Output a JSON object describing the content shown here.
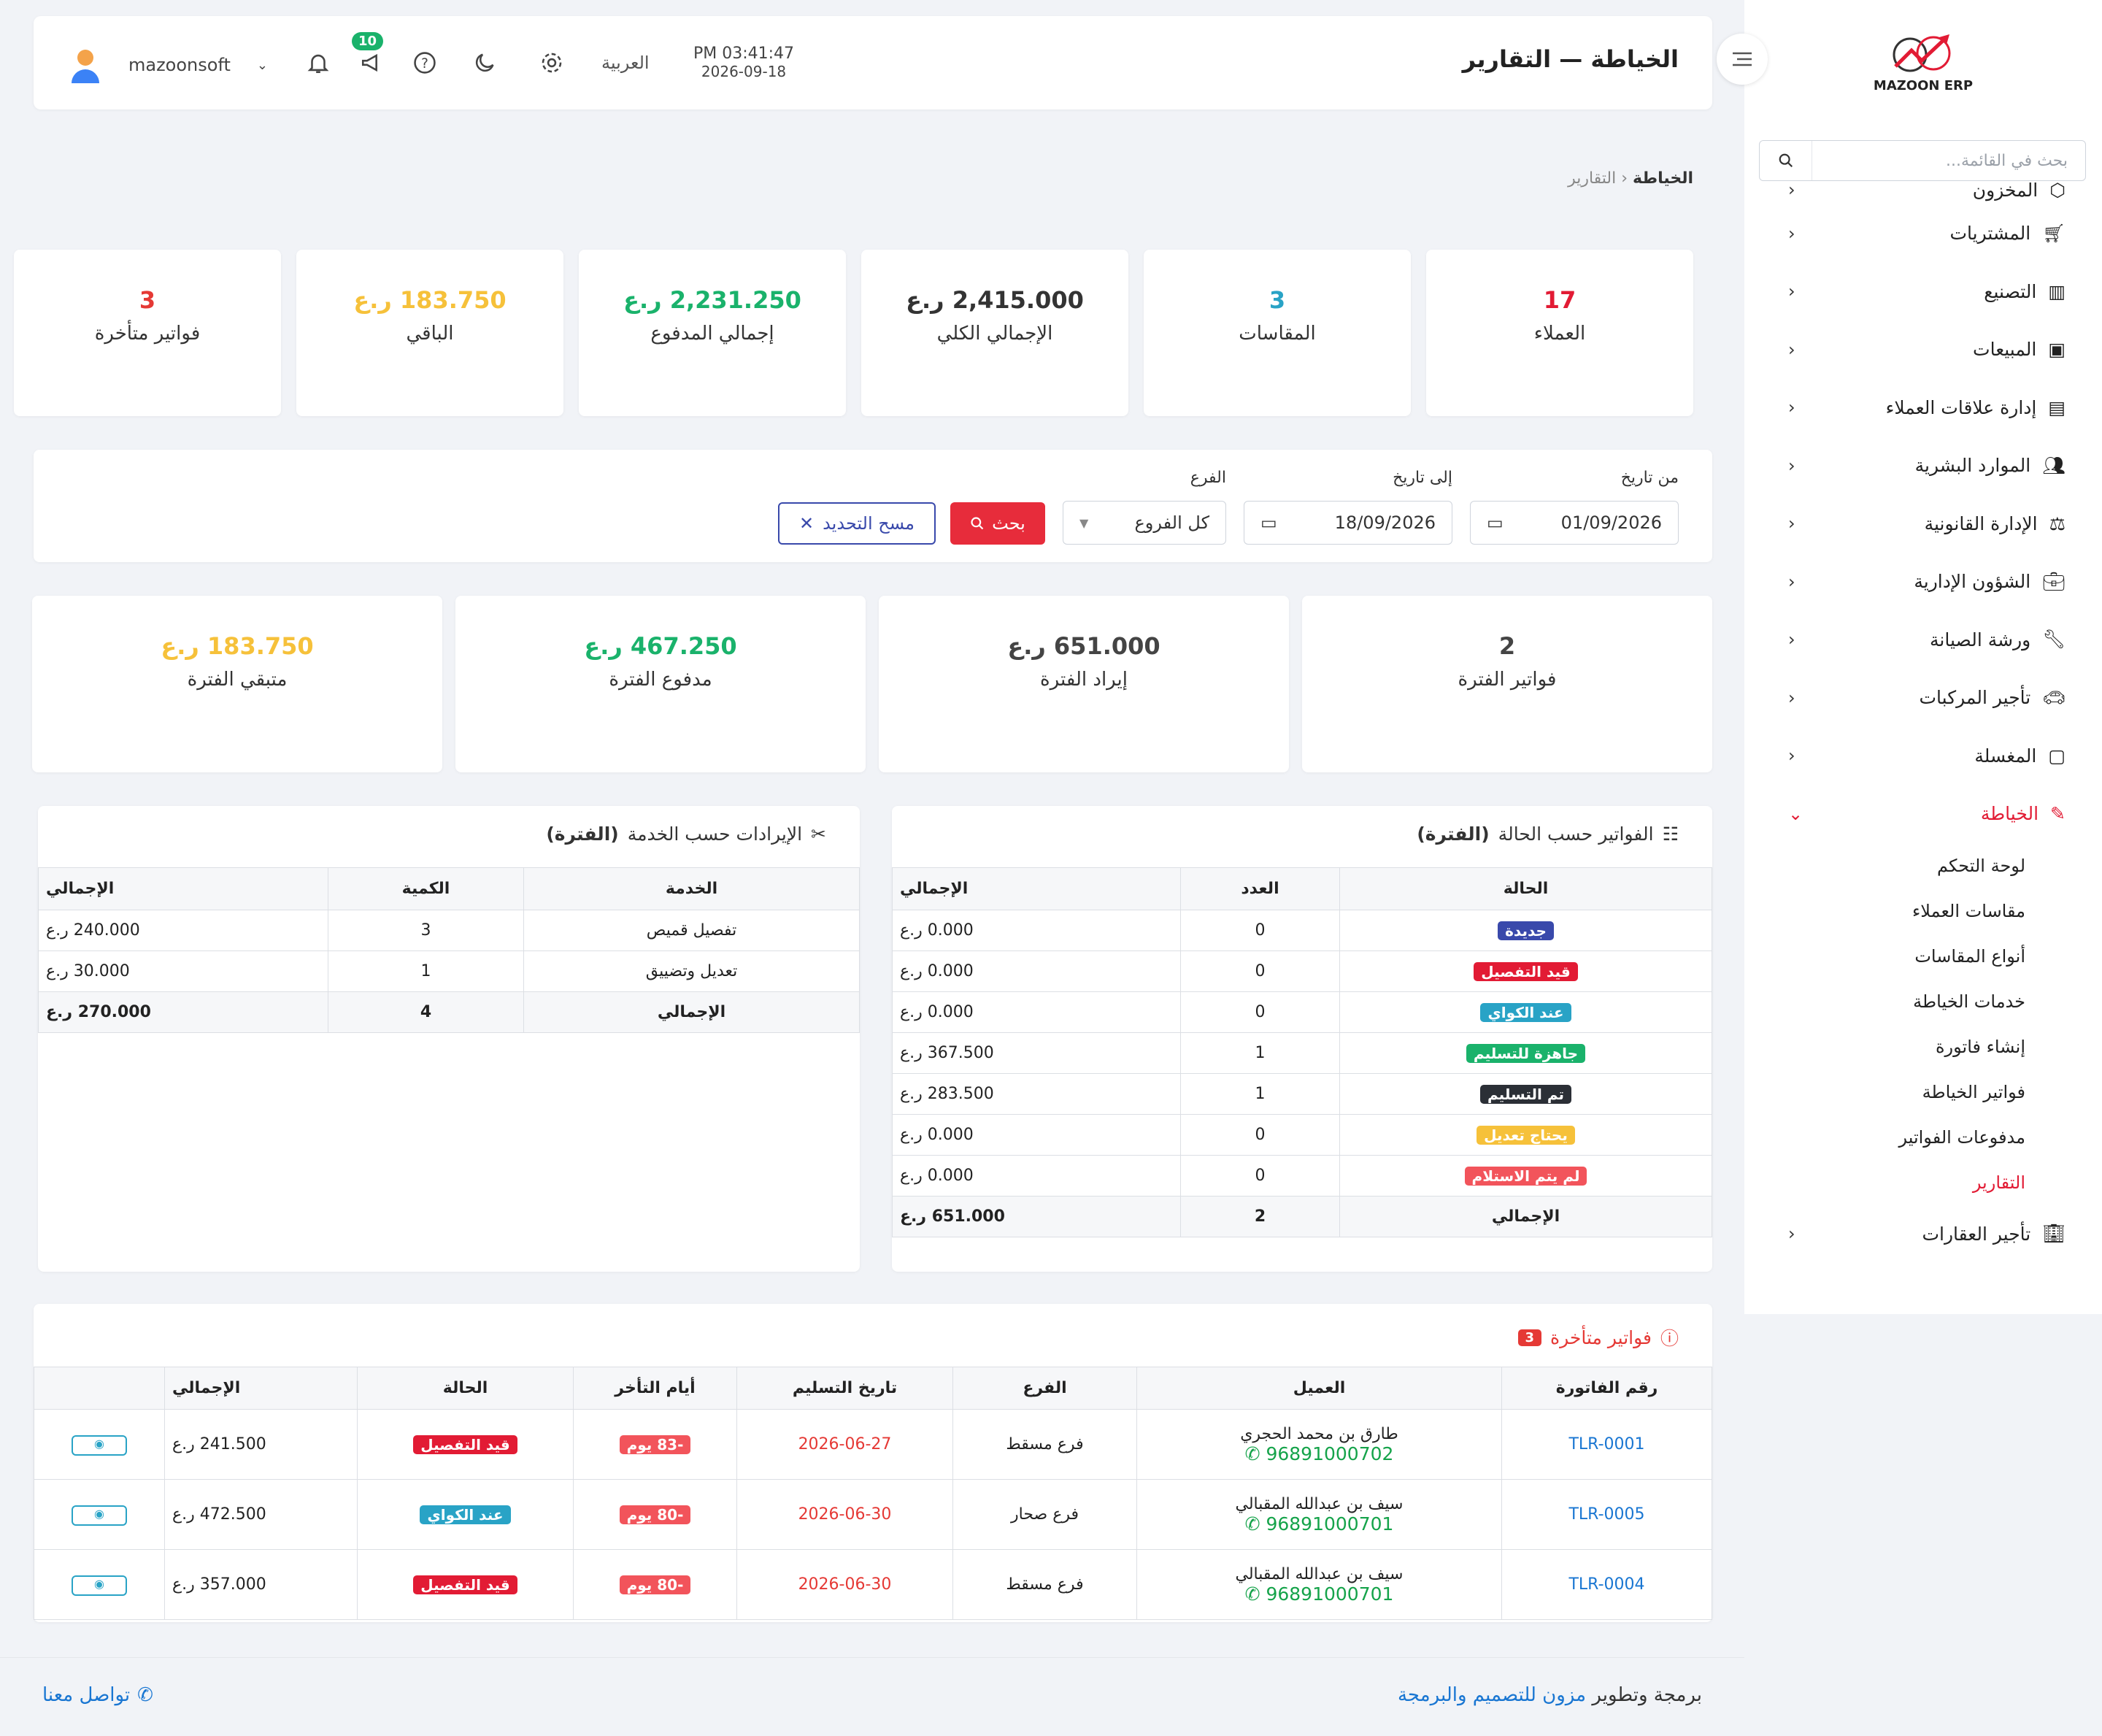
{
  "brand": {
    "name": "MAZOON ERP"
  },
  "sidebar": {
    "search_placeholder": "بحث في القائمة...",
    "items": [
      {
        "label": "المخزون"
      },
      {
        "label": "المشتريات"
      },
      {
        "label": "التصنيع"
      },
      {
        "label": "المبيعات"
      },
      {
        "label": "إدارة علاقات العملاء"
      },
      {
        "label": "الموارد البشرية"
      },
      {
        "label": "الإدارة القانونية"
      },
      {
        "label": "الشؤون الإدارية"
      },
      {
        "label": "ورشة الصيانة"
      },
      {
        "label": "تأجير المركبات"
      },
      {
        "label": "المغسلة"
      },
      {
        "label": "الخياطة"
      }
    ],
    "submenu": [
      "لوحة التحكم",
      "مقاسات العملاء",
      "أنواع المقاسات",
      "خدمات الخياطة",
      "إنشاء فاتورة",
      "فواتير الخياطة",
      "مدفوعات الفواتير",
      "التقارير"
    ],
    "last_item": "تأجير العقارات"
  },
  "header": {
    "title": "الخياطة — التقارير",
    "time": "PM 03:41:47",
    "date": "2026-09-18",
    "language": "العربية",
    "notifications_badge": "10",
    "username": "mazoonsoft"
  },
  "breadcrumb": {
    "root": "الخياطة",
    "current": "التقارير"
  },
  "kpis": [
    {
      "value": "17",
      "label": "العملاء",
      "color": "#e21b34"
    },
    {
      "value": "3",
      "label": "المقاسات",
      "color": "#29a3c6"
    },
    {
      "value": "2,415.000 ر.ع",
      "label": "الإجمالي الكلي",
      "color": "#333333"
    },
    {
      "value": "2,231.250 ر.ع",
      "label": "إجمالي المدفوع",
      "color": "#1ab26b"
    },
    {
      "value": "183.750 ر.ع",
      "label": "الباقي",
      "color": "#f6c13a"
    },
    {
      "value": "3",
      "label": "فواتير متأخرة",
      "color": "#e53935"
    }
  ],
  "filters": {
    "from_label": "من تاريخ",
    "from_value": "01/09/2026",
    "to_label": "إلى تاريخ",
    "to_value": "18/09/2026",
    "branch_label": "الفرع",
    "branch_value": "كل الفروع",
    "search_btn": "بحث",
    "clear_btn": "مسح التحديد"
  },
  "period": [
    {
      "value": "2",
      "label": "فواتير الفترة",
      "color": "#444444"
    },
    {
      "value": "651.000 ر.ع",
      "label": "إيراد الفترة",
      "color": "#444444"
    },
    {
      "value": "467.250 ر.ع",
      "label": "مدفوع الفترة",
      "color": "#1ab26b"
    },
    {
      "value": "183.750 ر.ع",
      "label": "متبقي الفترة",
      "color": "#f6c13a"
    }
  ],
  "status_table": {
    "title": "الفواتير حسب الحالة",
    "period": "(الفترة)",
    "headers": [
      "الحالة",
      "العدد",
      "الإجمالي"
    ],
    "rows": [
      {
        "status": "جديدة",
        "color": "#3949ab",
        "count": "0",
        "total": "0.000 ر.ع"
      },
      {
        "status": "قيد التفصيل",
        "color": "#e21b34",
        "count": "0",
        "total": "0.000 ر.ع"
      },
      {
        "status": "عند الكواي",
        "color": "#29a3c6",
        "count": "0",
        "total": "0.000 ر.ع"
      },
      {
        "status": "جاهزة للتسليم",
        "color": "#1ab26b",
        "count": "1",
        "total": "367.500 ر.ع"
      },
      {
        "status": "تم التسليم",
        "color": "#2b2f36",
        "count": "1",
        "total": "283.500 ر.ع"
      },
      {
        "status": "يحتاج تعديل",
        "color": "#f6c13a",
        "count": "0",
        "total": "0.000 ر.ع"
      },
      {
        "status": "لم يتم الاستلام",
        "color": "#f2545b",
        "count": "0",
        "total": "0.000 ر.ع"
      }
    ],
    "total": {
      "label": "الإجمالي",
      "count": "2",
      "total": "651.000 ر.ع"
    }
  },
  "service_table": {
    "title": "الإيرادات حسب الخدمة",
    "period": "(الفترة)",
    "headers": [
      "الخدمة",
      "الكمية",
      "الإجمالي"
    ],
    "rows": [
      {
        "service": "تفصيل قميص",
        "qty": "3",
        "total": "240.000 ر.ع"
      },
      {
        "service": "تعديل وتضييق",
        "qty": "1",
        "total": "30.000 ر.ع"
      }
    ],
    "total": {
      "label": "الإجمالي",
      "qty": "4",
      "total": "270.000 ر.ع"
    }
  },
  "late": {
    "title": "فواتير متأخرة",
    "count": "3",
    "headers": [
      "رقم الفاتورة",
      "العميل",
      "الفرع",
      "تاريخ التسليم",
      "أيام التأخر",
      "الحالة",
      "الإجمالي",
      ""
    ],
    "rows": [
      {
        "invoice": "TLR-0001",
        "customer": "طارق بن محمد الحجري",
        "phone": "96891000702",
        "branch": "فرع مسقط",
        "date": "2026-06-27",
        "days": "-83 يوم",
        "status": "قيد التفصيل",
        "status_color": "#e21b34",
        "total": "241.500 ر.ع"
      },
      {
        "invoice": "TLR-0005",
        "customer": "سيف بن عبدالله المقبالي",
        "phone": "96891000701",
        "branch": "فرع صحار",
        "date": "2026-06-30",
        "days": "-80 يوم",
        "status": "عند الكواي",
        "status_color": "#29a3c6",
        "total": "472.500 ر.ع"
      },
      {
        "invoice": "TLR-0004",
        "customer": "سيف بن عبدالله المقبالي",
        "phone": "96891000701",
        "branch": "فرع مسقط",
        "date": "2026-06-30",
        "days": "-80 يوم",
        "status": "قيد التفصيل",
        "status_color": "#e21b34",
        "total": "357.000 ر.ع"
      }
    ]
  },
  "footer": {
    "prefix": "برمجة وتطوير",
    "company": "مزون للتصميم والبرمجة",
    "contact": "تواصل معنا"
  }
}
